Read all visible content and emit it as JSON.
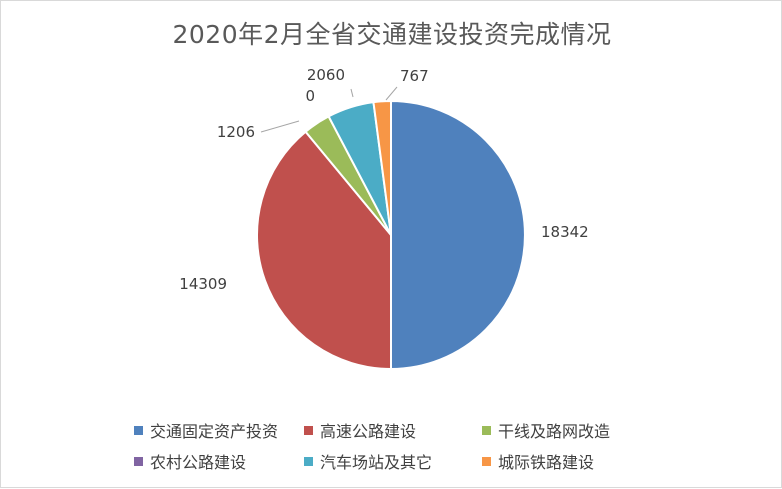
{
  "chart_data": {
    "type": "pie",
    "title": "2020年2月全省交通建设投资完成情况",
    "categories": [
      "交通固定资产投资",
      "高速公路建设",
      "干线及路网改造",
      "农村公路建设",
      "汽车场站及其它",
      "城际铁路建设"
    ],
    "values": [
      18342,
      14309,
      1206,
      0,
      2060,
      767
    ],
    "colors": [
      "#4f81bd",
      "#c0504d",
      "#9bbb59",
      "#8064a2",
      "#4bacc6",
      "#f79646"
    ],
    "legend_position": "bottom",
    "start_angle": "12 o'clock",
    "direction": "clockwise"
  }
}
